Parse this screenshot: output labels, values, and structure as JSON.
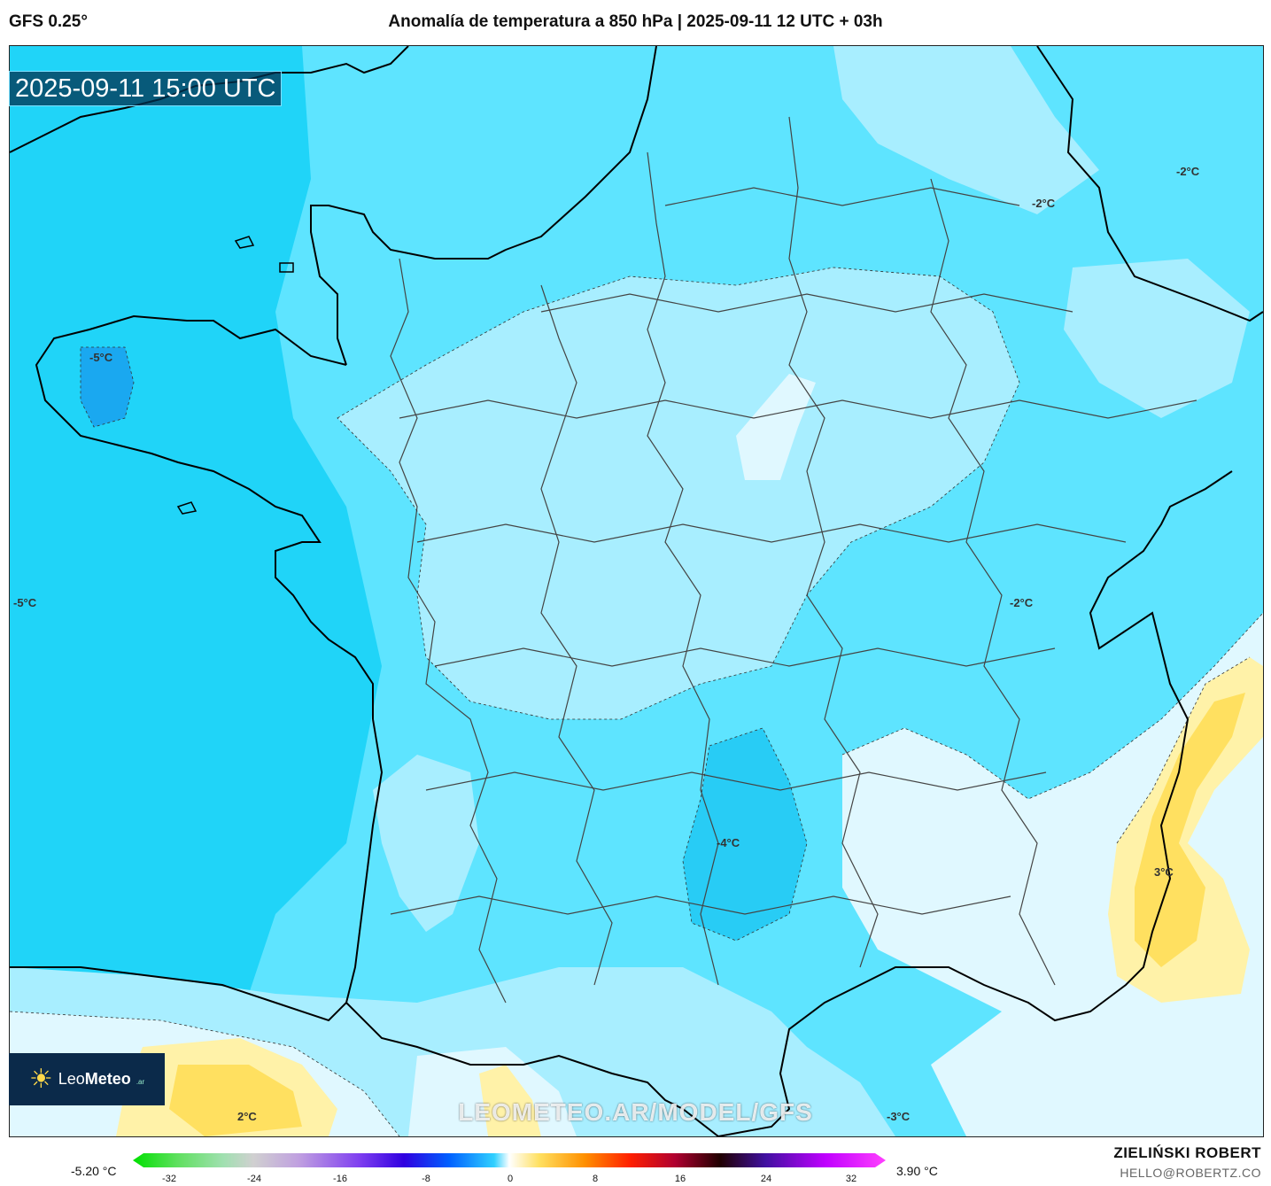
{
  "header": {
    "model": "GFS 0.25°",
    "title": "Anomalía de temperatura a 850 hPa | 2025-09-11 12 UTC + 03h"
  },
  "map": {
    "valid_time": "2025-09-11 15:00 UTC",
    "watermark": "LEOMETEO.AR/MODEL/GFS",
    "contour_labels": [
      {
        "id": "brittany",
        "text": "-5°C"
      },
      {
        "id": "atlantic",
        "text": "-5°C"
      },
      {
        "id": "ne1",
        "text": "-2°C"
      },
      {
        "id": "ne2",
        "text": "-2°C"
      },
      {
        "id": "alps",
        "text": "-2°C"
      },
      {
        "id": "massif",
        "text": "-4°C"
      },
      {
        "id": "italy",
        "text": "3°C"
      },
      {
        "id": "spain",
        "text": "2°C"
      },
      {
        "id": "med",
        "text": "-3°C"
      }
    ],
    "colors": {
      "sea_cold": "#20d4f8",
      "medium": "#5ee4ff",
      "light": "#a8eeff",
      "very_light": "#e0f8ff",
      "warm": "#fff2a8",
      "warmer": "#ffe060",
      "cold_core": "#1aa8f0"
    }
  },
  "logo": {
    "brand_light": "Leo",
    "brand_bold": "Meteo",
    "suffix": ".ar"
  },
  "legend": {
    "min_label": "-5.20 °C",
    "max_label": "3.90 °C",
    "ticks": [
      "-32",
      "-24",
      "-16",
      "-8",
      "0",
      "8",
      "16",
      "24",
      "32"
    ]
  },
  "footer": {
    "author": "ZIELIŃSKI ROBERT",
    "email": "HELLO@ROBERTZ.CO"
  }
}
